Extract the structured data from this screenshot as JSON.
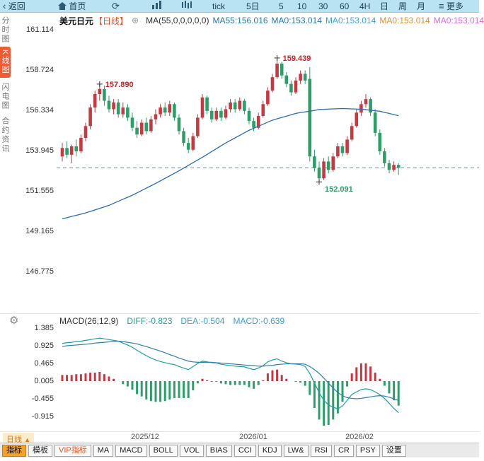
{
  "toolbar": {
    "back": "返回",
    "home": "首页",
    "tick": "tick",
    "d5": "5日",
    "m5": "5",
    "m10": "10",
    "m30": "30",
    "m60": "60",
    "h4": "4H",
    "day": "日",
    "week": "周",
    "month": "月",
    "more": "更多"
  },
  "left_rail": {
    "items": [
      {
        "label": "分时图",
        "active": false
      },
      {
        "label": "K线图",
        "active": true
      },
      {
        "label": "闪电图",
        "active": false
      },
      {
        "label": "合约资讯",
        "active": false
      }
    ]
  },
  "chart_header": {
    "symbol": "美元日元",
    "period_tag": "【日线】",
    "ma_formula": "MA(55,0,0,0,0,0)",
    "ma_values": [
      {
        "label": "MA55:156.016",
        "color": "#2779ab"
      },
      {
        "label": "MA0:153.014",
        "color": "#2779ab"
      },
      {
        "label": "MA0:153.014",
        "color": "#44a3d6"
      },
      {
        "label": "MA0:153.014",
        "color": "#dd8f33"
      },
      {
        "label": "MA0:153.014",
        "color": "#d86ad8"
      }
    ]
  },
  "macd_header": {
    "formula": "MACD(26,12,9)",
    "diff": {
      "label": "DIFF:-0.823",
      "color": "#2a9d93"
    },
    "dea": {
      "label": "DEA:-0.504",
      "color": "#3b9fd0"
    },
    "macd": {
      "label": "MACD:-0.639",
      "color": "#3b9fd0"
    }
  },
  "bottom": {
    "period_label": "日线",
    "tabs": [
      {
        "label": "指标",
        "active": true
      },
      {
        "label": "模板"
      },
      {
        "label": "VIP指标",
        "vip": true
      },
      {
        "label": "MA"
      },
      {
        "label": "MACD"
      },
      {
        "label": "BOLL"
      },
      {
        "label": "VOL"
      },
      {
        "label": "BIAS"
      },
      {
        "label": "CCI"
      },
      {
        "label": "KDJ"
      },
      {
        "label": "LW&"
      },
      {
        "label": "RSI"
      },
      {
        "label": "CR"
      },
      {
        "label": "PSY"
      },
      {
        "label": "设置"
      }
    ]
  },
  "chart_data": {
    "type": "candlestick+macd",
    "title": "美元日元 日线",
    "x_labels": [
      "2025/12",
      "2026/01",
      "2026/02"
    ],
    "panels": [
      {
        "type": "candlestick",
        "y_ticks": [
          161.114,
          158.724,
          156.334,
          153.945,
          151.555,
          149.165,
          146.775
        ],
        "ylim": [
          146.775,
          161.114
        ],
        "last_close_line": 152.93,
        "colors": {
          "up": "#c43a42",
          "down": "#2e9e68",
          "ma": "#2b6cb0",
          "dashed": "#3a9ad9"
        },
        "annotations": [
          {
            "index": 8,
            "price": 157.89,
            "label": "157.890",
            "position": "above",
            "color": "#cc2222"
          },
          {
            "index": 46,
            "price": 159.439,
            "label": "159.439",
            "position": "above",
            "color": "#cc2222"
          },
          {
            "index": 55,
            "price": 152.091,
            "label": "152.091",
            "position": "below",
            "color": "#2e9e68"
          }
        ],
        "candles": [
          [
            153.6,
            154.4,
            153.3,
            154.1
          ],
          [
            154.1,
            154.5,
            153.5,
            153.7
          ],
          [
            153.7,
            154.3,
            153.2,
            154.2
          ],
          [
            154.2,
            154.6,
            153.6,
            153.9
          ],
          [
            153.9,
            154.9,
            153.8,
            154.7
          ],
          [
            154.7,
            155.6,
            154.5,
            155.4
          ],
          [
            155.4,
            156.7,
            155.2,
            156.5
          ],
          [
            156.5,
            157.5,
            156.2,
            157.3
          ],
          [
            157.3,
            157.89,
            156.9,
            157.6
          ],
          [
            157.6,
            157.8,
            156.6,
            156.9
          ],
          [
            156.9,
            157.2,
            156.2,
            156.4
          ],
          [
            156.4,
            157.0,
            156.1,
            156.8
          ],
          [
            156.8,
            157.0,
            155.9,
            156.1
          ],
          [
            156.1,
            156.8,
            155.9,
            156.5
          ],
          [
            156.5,
            156.7,
            155.7,
            155.9
          ],
          [
            155.9,
            156.2,
            155.1,
            155.3
          ],
          [
            155.3,
            155.7,
            154.7,
            154.9
          ],
          [
            154.9,
            155.8,
            154.8,
            155.6
          ],
          [
            155.6,
            155.9,
            154.9,
            155.1
          ],
          [
            155.1,
            156.0,
            155.0,
            155.8
          ],
          [
            155.8,
            156.4,
            155.5,
            156.1
          ],
          [
            156.1,
            156.7,
            155.9,
            156.5
          ],
          [
            156.5,
            156.8,
            156.0,
            156.2
          ],
          [
            156.2,
            156.9,
            156.0,
            156.7
          ],
          [
            156.7,
            156.8,
            155.7,
            155.9
          ],
          [
            155.9,
            156.1,
            154.9,
            155.1
          ],
          [
            155.1,
            155.3,
            154.2,
            154.4
          ],
          [
            154.4,
            154.7,
            153.8,
            154.0
          ],
          [
            154.0,
            155.0,
            153.9,
            154.8
          ],
          [
            154.8,
            156.1,
            154.7,
            155.9
          ],
          [
            155.9,
            157.3,
            155.8,
            157.1
          ],
          [
            157.1,
            157.2,
            156.1,
            156.3
          ],
          [
            156.3,
            156.5,
            155.6,
            155.8
          ],
          [
            155.8,
            156.5,
            155.7,
            156.3
          ],
          [
            156.3,
            156.5,
            155.7,
            155.9
          ],
          [
            155.9,
            156.6,
            155.8,
            156.4
          ],
          [
            156.4,
            157.0,
            156.2,
            156.8
          ],
          [
            156.8,
            157.0,
            156.2,
            156.4
          ],
          [
            156.4,
            157.1,
            156.3,
            156.9
          ],
          [
            156.9,
            157.0,
            156.1,
            156.3
          ],
          [
            156.3,
            156.5,
            155.5,
            155.7
          ],
          [
            155.7,
            155.9,
            155.1,
            155.3
          ],
          [
            155.3,
            156.2,
            155.2,
            156.0
          ],
          [
            156.0,
            156.9,
            155.9,
            156.7
          ],
          [
            156.7,
            157.7,
            156.6,
            157.5
          ],
          [
            157.5,
            158.5,
            157.4,
            158.3
          ],
          [
            158.3,
            159.439,
            158.2,
            159.1
          ],
          [
            159.1,
            159.2,
            158.2,
            158.4
          ],
          [
            158.4,
            158.6,
            157.7,
            157.9
          ],
          [
            157.9,
            158.1,
            157.2,
            157.4
          ],
          [
            157.4,
            158.3,
            157.3,
            158.1
          ],
          [
            158.1,
            158.7,
            157.9,
            158.5
          ],
          [
            158.5,
            158.7,
            157.9,
            158.1
          ],
          [
            158.2,
            158.9,
            153.3,
            153.6
          ],
          [
            153.6,
            154.0,
            152.7,
            152.9
          ],
          [
            152.9,
            153.3,
            152.091,
            152.3
          ],
          [
            152.3,
            153.5,
            152.2,
            153.3
          ],
          [
            153.3,
            153.6,
            152.6,
            152.8
          ],
          [
            152.8,
            153.8,
            152.7,
            153.6
          ],
          [
            153.6,
            154.4,
            153.5,
            154.2
          ],
          [
            154.2,
            154.4,
            153.6,
            153.8
          ],
          [
            153.8,
            154.8,
            153.7,
            154.6
          ],
          [
            154.6,
            155.6,
            154.5,
            155.4
          ],
          [
            155.4,
            156.4,
            155.3,
            156.2
          ],
          [
            156.2,
            156.9,
            156.0,
            156.7
          ],
          [
            156.7,
            157.3,
            156.5,
            157.0
          ],
          [
            157.0,
            157.1,
            156.0,
            156.2
          ],
          [
            156.2,
            156.4,
            154.8,
            155.0
          ],
          [
            155.0,
            155.2,
            153.7,
            153.9
          ],
          [
            153.9,
            154.1,
            153.0,
            153.2
          ],
          [
            153.2,
            153.4,
            152.6,
            152.8
          ],
          [
            152.8,
            153.3,
            152.7,
            153.1
          ],
          [
            153.1,
            153.2,
            152.5,
            152.93
          ]
        ],
        "ma55": [
          149.9,
          149.97,
          150.04,
          150.11,
          150.18,
          150.25,
          150.34,
          150.43,
          150.52,
          150.61,
          150.7,
          150.82,
          150.94,
          151.06,
          151.18,
          151.3,
          151.44,
          151.58,
          151.72,
          151.86,
          152.0,
          152.15,
          152.3,
          152.45,
          152.6,
          152.75,
          152.91,
          153.07,
          153.23,
          153.39,
          153.55,
          153.72,
          153.89,
          154.06,
          154.23,
          154.4,
          154.55,
          154.7,
          154.85,
          155.0,
          155.15,
          155.27,
          155.39,
          155.51,
          155.63,
          155.75,
          155.83,
          155.91,
          155.99,
          156.07,
          156.15,
          156.2,
          156.24,
          156.28,
          156.33,
          156.38,
          156.39,
          156.41,
          156.42,
          156.43,
          156.44,
          156.43,
          156.42,
          156.41,
          156.4,
          156.37,
          156.34,
          156.31,
          156.28,
          156.21,
          156.15,
          156.08,
          156.016
        ]
      },
      {
        "type": "macd",
        "params": [
          26,
          12,
          9
        ],
        "y_ticks": [
          1.385,
          0.925,
          0.465,
          0.005,
          -0.455,
          -0.915
        ],
        "last": {
          "diff": -0.823,
          "dea": -0.504,
          "macd": -0.639
        },
        "colors": {
          "pos": "#c43a42",
          "neg": "#2e9e68",
          "diff": "#1fa0a0",
          "dea": "#2f7fae"
        },
        "diff": [
          0.98,
          1.0,
          1.01,
          1.03,
          1.04,
          1.06,
          1.08,
          1.1,
          1.12,
          1.1,
          1.08,
          1.06,
          1.04,
          0.99,
          0.94,
          0.88,
          0.8,
          0.73,
          0.66,
          0.6,
          0.55,
          0.51,
          0.48,
          0.45,
          0.43,
          0.38,
          0.34,
          0.3,
          0.38,
          0.46,
          0.52,
          0.5,
          0.48,
          0.47,
          0.44,
          0.42,
          0.4,
          0.39,
          0.38,
          0.37,
          0.33,
          0.3,
          0.34,
          0.4,
          0.5,
          0.55,
          0.58,
          0.52,
          0.48,
          0.45,
          0.44,
          0.43,
          0.38,
          0.2,
          -0.05,
          -0.3,
          -0.5,
          -0.62,
          -0.68,
          -0.72,
          -0.65,
          -0.5,
          -0.35,
          -0.28,
          -0.22,
          -0.2,
          -0.22,
          -0.28,
          -0.35,
          -0.45,
          -0.58,
          -0.71,
          -0.823
        ],
        "dea": [
          0.9,
          0.92,
          0.93,
          0.94,
          0.95,
          0.96,
          0.97,
          0.99,
          1.0,
          1.01,
          1.02,
          1.03,
          1.04,
          1.03,
          1.01,
          0.99,
          0.97,
          0.93,
          0.9,
          0.86,
          0.82,
          0.78,
          0.74,
          0.69,
          0.65,
          0.6,
          0.56,
          0.52,
          0.5,
          0.49,
          0.49,
          0.49,
          0.49,
          0.48,
          0.47,
          0.46,
          0.45,
          0.44,
          0.43,
          0.42,
          0.41,
          0.4,
          0.39,
          0.39,
          0.4,
          0.41,
          0.43,
          0.44,
          0.45,
          0.45,
          0.45,
          0.45,
          0.44,
          0.38,
          0.3,
          0.2,
          0.08,
          -0.05,
          -0.18,
          -0.3,
          -0.38,
          -0.43,
          -0.45,
          -0.46,
          -0.45,
          -0.43,
          -0.41,
          -0.39,
          -0.38,
          -0.39,
          -0.42,
          -0.46,
          -0.504
        ]
      }
    ]
  }
}
